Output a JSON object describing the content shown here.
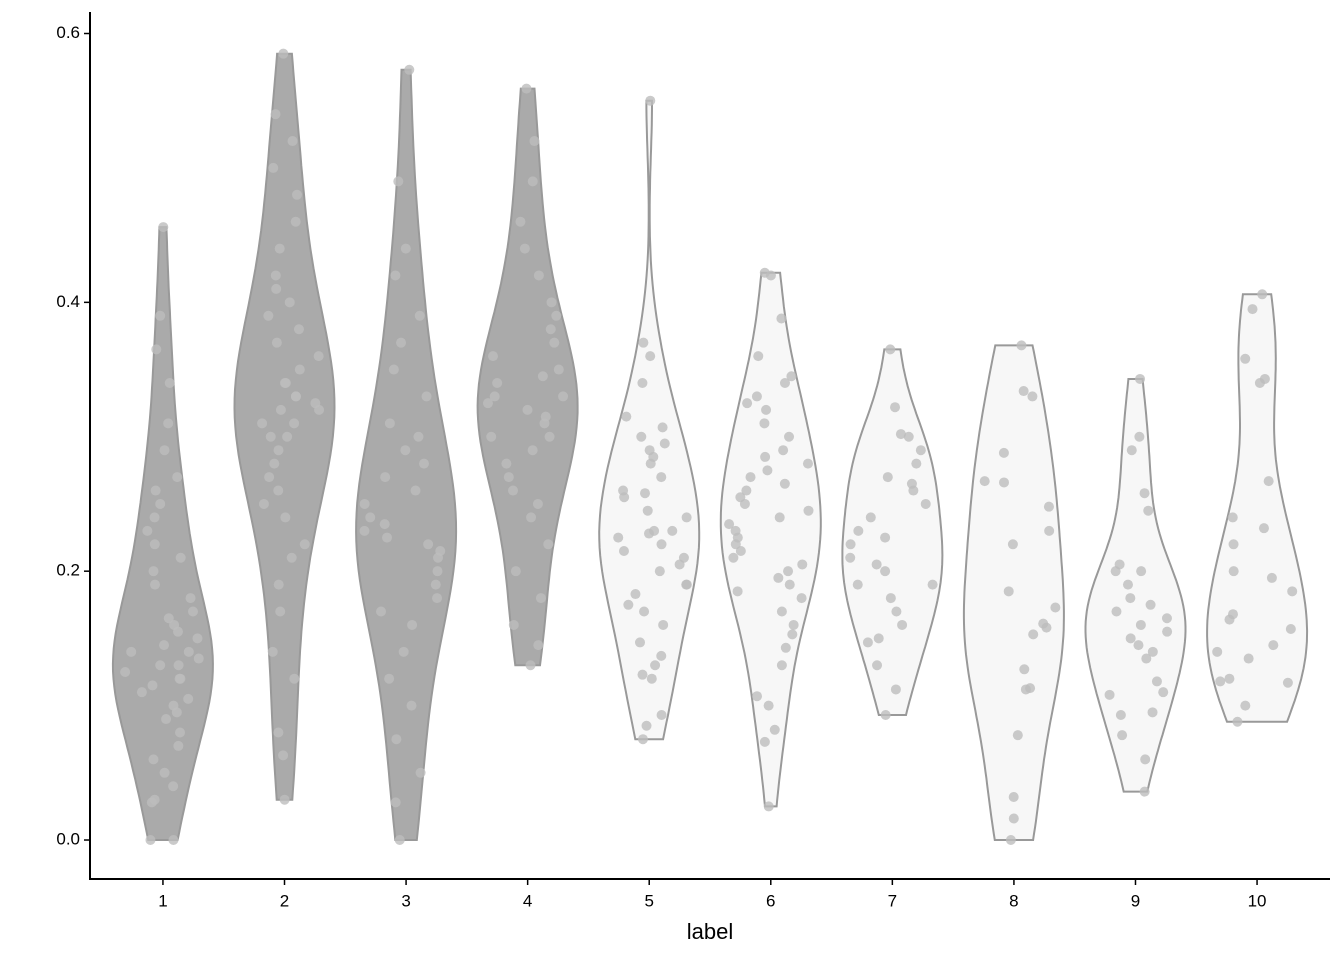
{
  "chart_data": {
    "type": "violin",
    "x_label": "label",
    "categories": [
      "1",
      "2",
      "3",
      "4",
      "5",
      "6",
      "7",
      "8",
      "9",
      "10"
    ],
    "ylim": [
      -0.029,
      0.616
    ],
    "yticks": [
      {
        "value": 0,
        "label": "0.0"
      },
      0.2,
      0.4,
      0.6
    ],
    "outline_color": "#999999",
    "point_color": "#bdbdbd",
    "groups": [
      {
        "fill": "#aaaaaa",
        "values": [
          0,
          0,
          0.03,
          0.028,
          0.04,
          0.05,
          0.06,
          0.07,
          0.08,
          0.09,
          0.095,
          0.1,
          0.105,
          0.11,
          0.115,
          0.12,
          0.12,
          0.125,
          0.13,
          0.13,
          0.135,
          0.14,
          0.14,
          0.145,
          0.15,
          0.155,
          0.16,
          0.165,
          0.17,
          0.18,
          0.19,
          0.2,
          0.21,
          0.22,
          0.23,
          0.24,
          0.25,
          0.26,
          0.27,
          0.29,
          0.31,
          0.34,
          0.365,
          0.39,
          0.456
        ]
      },
      {
        "fill": "#aaaaaa",
        "values": [
          0.03,
          0.063,
          0.08,
          0.12,
          0.14,
          0.17,
          0.19,
          0.21,
          0.22,
          0.24,
          0.25,
          0.26,
          0.27,
          0.28,
          0.29,
          0.3,
          0.3,
          0.31,
          0.31,
          0.32,
          0.32,
          0.325,
          0.33,
          0.33,
          0.34,
          0.34,
          0.35,
          0.36,
          0.37,
          0.38,
          0.39,
          0.4,
          0.41,
          0.42,
          0.44,
          0.46,
          0.48,
          0.5,
          0.52,
          0.54,
          0.585
        ]
      },
      {
        "fill": "#aaaaaa",
        "values": [
          0,
          0.028,
          0.05,
          0.075,
          0.1,
          0.12,
          0.14,
          0.16,
          0.17,
          0.18,
          0.19,
          0.2,
          0.21,
          0.215,
          0.22,
          0.225,
          0.23,
          0.235,
          0.24,
          0.25,
          0.26,
          0.27,
          0.28,
          0.29,
          0.3,
          0.31,
          0.33,
          0.35,
          0.37,
          0.39,
          0.42,
          0.44,
          0.49,
          0.573
        ]
      },
      {
        "fill": "#aaaaaa",
        "values": [
          0.13,
          0.145,
          0.16,
          0.18,
          0.2,
          0.22,
          0.24,
          0.25,
          0.26,
          0.27,
          0.28,
          0.29,
          0.3,
          0.3,
          0.31,
          0.315,
          0.32,
          0.325,
          0.33,
          0.33,
          0.34,
          0.345,
          0.35,
          0.36,
          0.37,
          0.38,
          0.39,
          0.4,
          0.42,
          0.44,
          0.46,
          0.49,
          0.52,
          0.559
        ]
      },
      {
        "fill": "#f7f7f7",
        "values": [
          0.075,
          0.085,
          0.093,
          0.12,
          0.123,
          0.13,
          0.137,
          0.147,
          0.16,
          0.17,
          0.175,
          0.183,
          0.19,
          0.19,
          0.2,
          0.205,
          0.21,
          0.215,
          0.22,
          0.225,
          0.228,
          0.23,
          0.23,
          0.24,
          0.245,
          0.255,
          0.258,
          0.26,
          0.27,
          0.28,
          0.285,
          0.29,
          0.295,
          0.3,
          0.307,
          0.315,
          0.34,
          0.36,
          0.37,
          0.55
        ]
      },
      {
        "fill": "#f7f7f7",
        "values": [
          0.025,
          0.073,
          0.082,
          0.1,
          0.107,
          0.13,
          0.143,
          0.153,
          0.16,
          0.17,
          0.18,
          0.185,
          0.19,
          0.195,
          0.2,
          0.205,
          0.21,
          0.215,
          0.22,
          0.225,
          0.23,
          0.235,
          0.24,
          0.245,
          0.25,
          0.255,
          0.26,
          0.265,
          0.27,
          0.275,
          0.28,
          0.285,
          0.29,
          0.3,
          0.31,
          0.32,
          0.325,
          0.33,
          0.34,
          0.345,
          0.36,
          0.388,
          0.42,
          0.422
        ]
      },
      {
        "fill": "#f7f7f7",
        "values": [
          0.093,
          0.112,
          0.13,
          0.147,
          0.15,
          0.16,
          0.17,
          0.18,
          0.19,
          0.19,
          0.2,
          0.205,
          0.21,
          0.22,
          0.225,
          0.23,
          0.24,
          0.25,
          0.26,
          0.265,
          0.27,
          0.28,
          0.29,
          0.3,
          0.302,
          0.322,
          0.365
        ]
      },
      {
        "fill": "#f7f7f7",
        "values": [
          0,
          0.016,
          0.032,
          0.078,
          0.113,
          0.112,
          0.127,
          0.153,
          0.158,
          0.161,
          0.173,
          0.185,
          0.22,
          0.23,
          0.248,
          0.266,
          0.267,
          0.288,
          0.33,
          0.334,
          0.368
        ]
      },
      {
        "fill": "#f7f7f7",
        "values": [
          0.036,
          0.06,
          0.078,
          0.093,
          0.095,
          0.108,
          0.11,
          0.118,
          0.135,
          0.14,
          0.145,
          0.15,
          0.155,
          0.16,
          0.165,
          0.17,
          0.175,
          0.18,
          0.19,
          0.2,
          0.2,
          0.205,
          0.245,
          0.258,
          0.29,
          0.3,
          0.343
        ]
      },
      {
        "fill": "#f7f7f7",
        "values": [
          0.088,
          0.1,
          0.117,
          0.118,
          0.12,
          0.135,
          0.14,
          0.145,
          0.157,
          0.164,
          0.168,
          0.185,
          0.195,
          0.2,
          0.22,
          0.232,
          0.24,
          0.267,
          0.34,
          0.343,
          0.358,
          0.395,
          0.406
        ]
      }
    ]
  }
}
